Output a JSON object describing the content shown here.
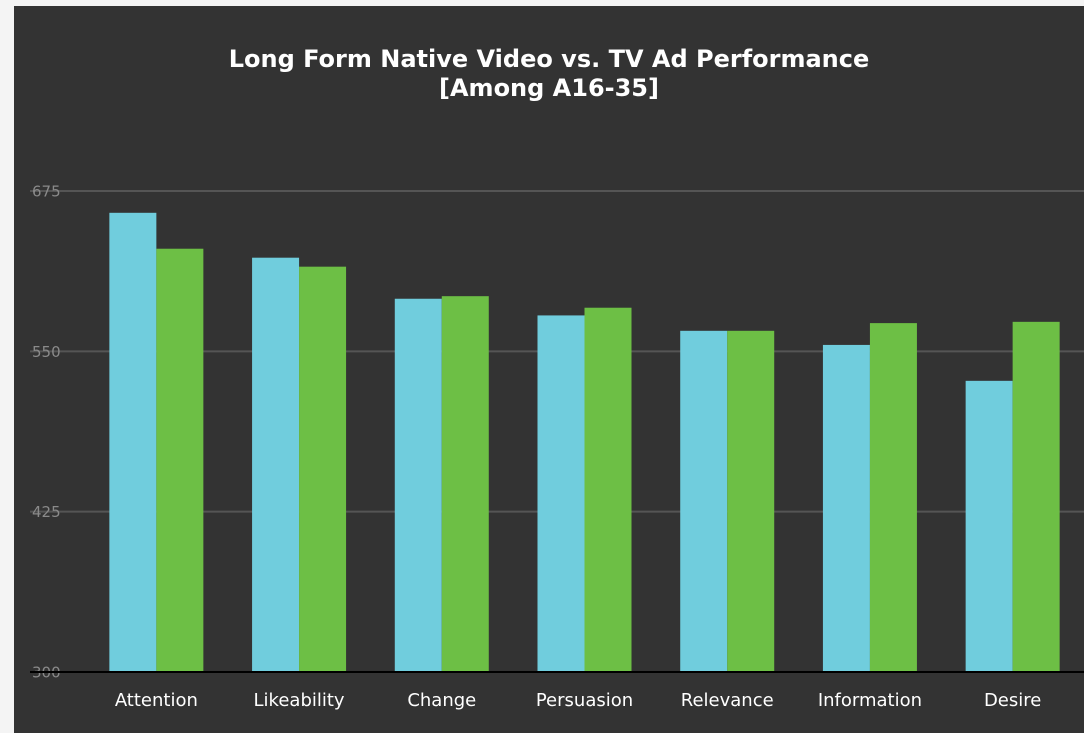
{
  "chart_data": {
    "type": "bar",
    "title": "Long Form Native Video vs. TV Ad Performance",
    "subtitle": "[Among A16-35]",
    "categories": [
      "Attention",
      "Likeability",
      "Change",
      "Persuasion",
      "Relevance",
      "Information",
      "Desire"
    ],
    "series": [
      {
        "color": "#70cddd",
        "values": [
          658,
          623,
          591,
          578,
          566,
          555,
          527
        ]
      },
      {
        "color": "#6dbf45",
        "values": [
          630,
          616,
          593,
          584,
          566,
          572,
          573
        ]
      }
    ],
    "ylim": [
      300,
      675
    ],
    "yticks": [
      300,
      425,
      550,
      675
    ],
    "grid": true
  }
}
